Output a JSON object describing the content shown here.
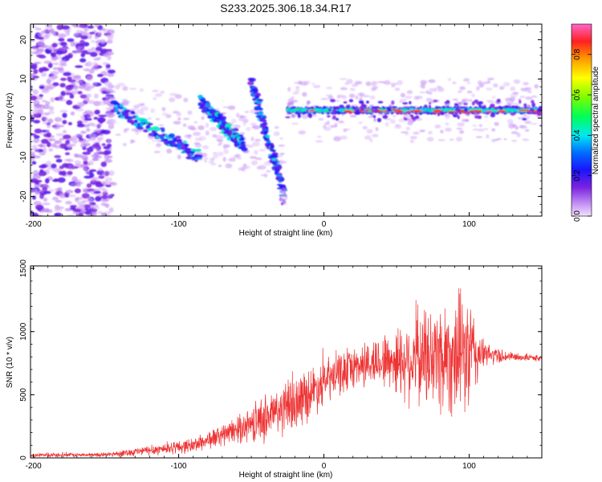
{
  "title": "S233.2025.306.18.34.R17",
  "chart_data": [
    {
      "type": "heatmap",
      "xlabel": "Height of straight line (km)",
      "ylabel": "Frequency (Hz)",
      "xlim": [
        -202,
        150
      ],
      "ylim": [
        -25,
        24
      ],
      "xticks": [
        -200,
        -100,
        0,
        100
      ],
      "yticks": [
        -20,
        -10,
        0,
        10,
        20
      ],
      "colorbar": {
        "label": "Normalized spectral amplitude",
        "range": [
          0,
          0.95
        ],
        "ticks": [
          0.0,
          0.2,
          0.4,
          0.6,
          0.8
        ]
      },
      "features": [
        {
          "name": "diffuse noise",
          "x": [
            -202,
            -145
          ],
          "freq": [
            -25,
            24
          ]
        },
        {
          "name": "fragment 1",
          "x": [
            -145,
            -85
          ],
          "freq": [
            3,
            -10
          ]
        },
        {
          "name": "fragment 2",
          "x": [
            -85,
            -55
          ],
          "freq": [
            4,
            -7
          ]
        },
        {
          "name": "fragment 3",
          "x": [
            -50,
            -28
          ],
          "freq": [
            9,
            -19
          ]
        },
        {
          "name": "steady tone",
          "x": [
            -25,
            150
          ],
          "freq": [
            1.5,
            2.5
          ]
        }
      ]
    },
    {
      "type": "line",
      "xlabel": "Height of straight line (km)",
      "ylabel": "SNR (10 * v/v)",
      "xlim": [
        -202,
        150
      ],
      "ylim": [
        0,
        1520
      ],
      "xticks": [
        -200,
        -100,
        0,
        100
      ],
      "yticks": [
        0,
        500,
        1000,
        1500
      ],
      "series": [
        {
          "name": "SNR",
          "color": "#ee3333",
          "envelope": {
            "x": [
              -202,
              -150,
              -120,
              -90,
              -60,
              -40,
              -20,
              0,
              20,
              40,
              60,
              80,
              100,
              110,
              130,
              150
            ],
            "baseline": [
              20,
              25,
              60,
              100,
              220,
              320,
              430,
              600,
              720,
              770,
              780,
              810,
              820,
              820,
              800,
              790
            ],
            "spread": [
              20,
              20,
              50,
              70,
              120,
              230,
              270,
              220,
              200,
              250,
              420,
              560,
              580,
              120,
              40,
              30
            ]
          }
        }
      ]
    }
  ]
}
